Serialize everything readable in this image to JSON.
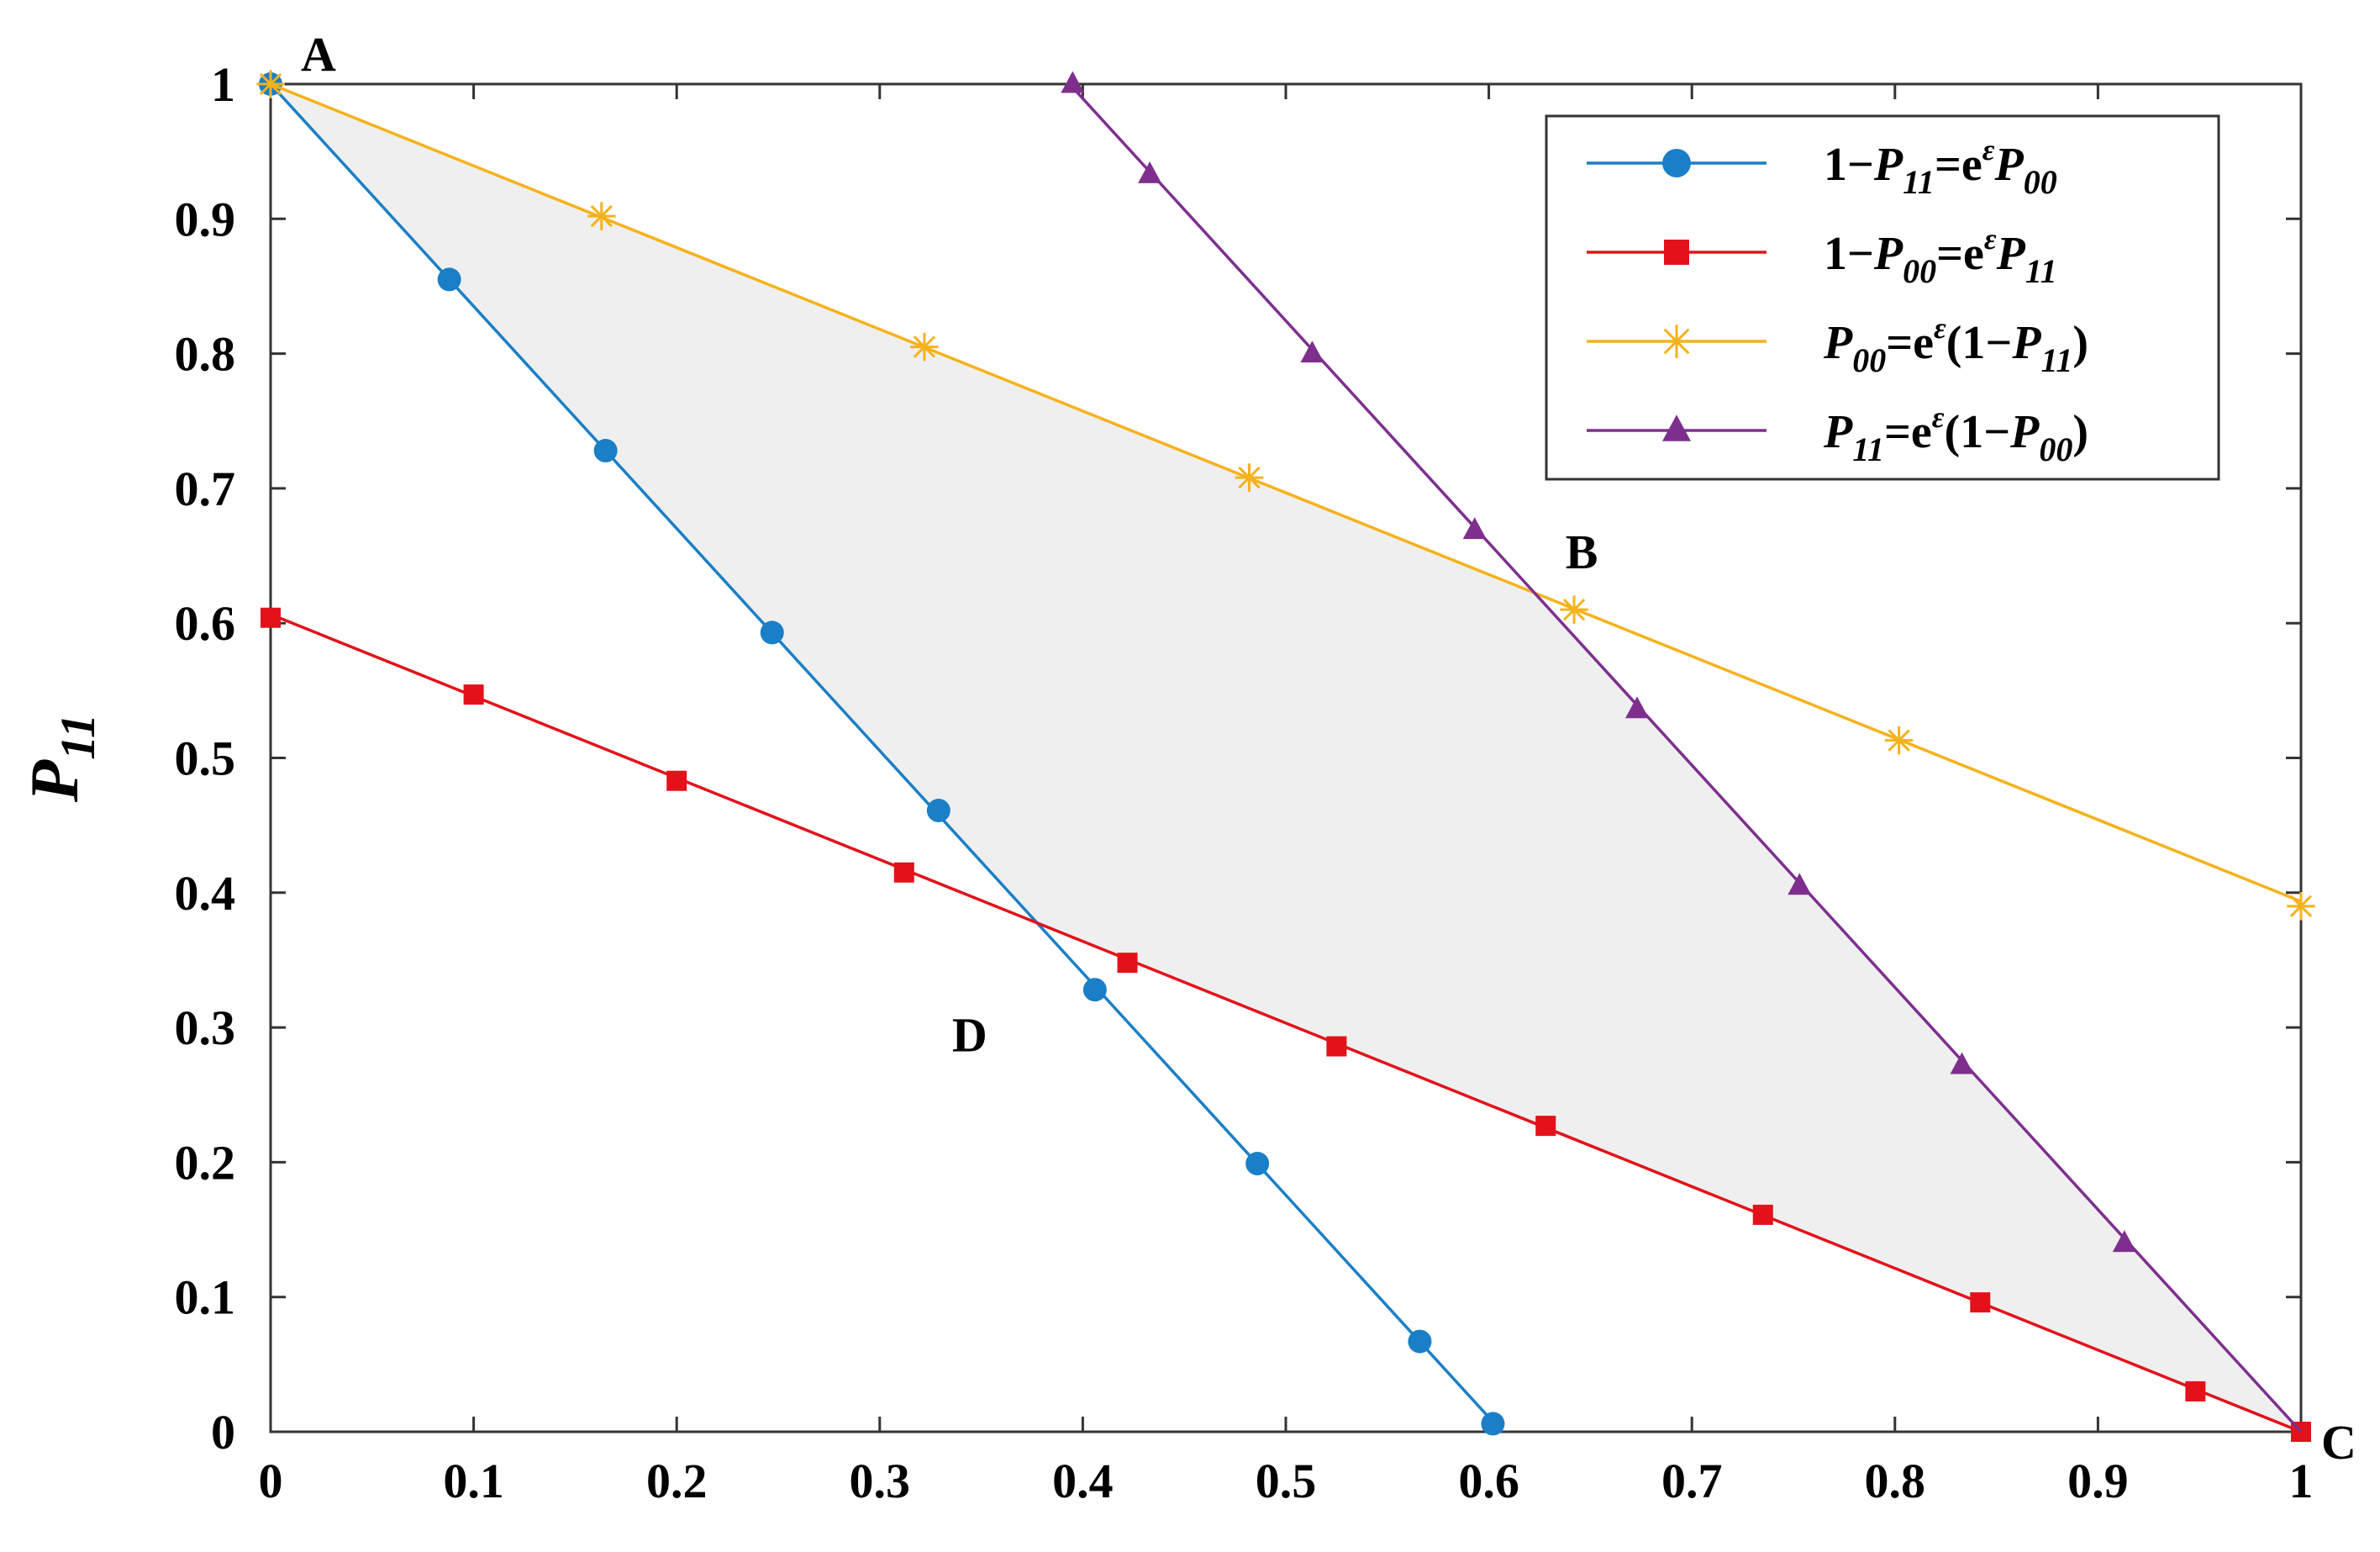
{
  "chart_data": {
    "type": "line",
    "title": "",
    "xlabel": "",
    "ylabel": "P11",
    "xlim": [
      0,
      1
    ],
    "ylim": [
      0,
      1
    ],
    "x_ticks": [
      "0",
      "0.1",
      "0.2",
      "0.3",
      "0.4",
      "0.5",
      "0.6",
      "0.7",
      "0.8",
      "0.9",
      "1"
    ],
    "y_ticks": [
      "0",
      "0.1",
      "0.2",
      "0.3",
      "0.4",
      "0.5",
      "0.6",
      "0.7",
      "0.8",
      "0.9",
      "1"
    ],
    "grid": false,
    "legend_position": "top-right",
    "shaded_region": {
      "description": "feasible region ABCD",
      "color": "#efefef",
      "vertices": [
        [
          0,
          1
        ],
        [
          0.622,
          0.622
        ],
        [
          1,
          0
        ],
        [
          0.377,
          0.377
        ]
      ]
    },
    "point_labels": [
      {
        "text": "A",
        "x": 0,
        "y": 1
      },
      {
        "text": "B",
        "x": 0.622,
        "y": 0.622
      },
      {
        "text": "C",
        "x": 1,
        "y": 0
      },
      {
        "text": "D",
        "x": 0.377,
        "y": 0.377
      }
    ],
    "series": [
      {
        "legend": {
          "prefix": "1−",
          "a": "P",
          "a_sub": "11",
          "mid": "=e",
          "sup": "ε",
          "b": "P",
          "b_sub": "00",
          "suffix": ""
        },
        "color": "#1a7fc6",
        "marker": "circle",
        "line_x": [
          0,
          0.6065
        ],
        "line_y": [
          1,
          0
        ],
        "x": [
          0,
          0.088,
          0.165,
          0.247,
          0.329,
          0.406,
          0.486,
          0.566,
          0.602
        ],
        "y": [
          1,
          0.855,
          0.728,
          0.593,
          0.461,
          0.328,
          0.199,
          0.067,
          0.006
        ]
      },
      {
        "legend": {
          "prefix": "1−",
          "a": "P",
          "a_sub": "00",
          "mid": "=e",
          "sup": "ε",
          "b": "P",
          "b_sub": "11",
          "suffix": ""
        },
        "color": "#e3121a",
        "marker": "square",
        "line_x": [
          0,
          1
        ],
        "line_y": [
          0.6065,
          0
        ],
        "x": [
          0,
          0.1,
          0.2,
          0.312,
          0.422,
          0.525,
          0.628,
          0.735,
          0.842,
          0.948,
          1
        ],
        "y": [
          0.604,
          0.547,
          0.483,
          0.415,
          0.348,
          0.286,
          0.227,
          0.161,
          0.096,
          0.03,
          0
        ]
      },
      {
        "legend": {
          "prefix": "",
          "a": "P",
          "a_sub": "00",
          "mid": "=e",
          "sup": "ε",
          "b": "(1−P",
          "b_sub": "11",
          "suffix": ")"
        },
        "color": "#f5b21c",
        "marker": "asterisk",
        "line_x": [
          0,
          1
        ],
        "line_y": [
          1,
          0.3935
        ],
        "x": [
          0,
          0.163,
          0.322,
          0.482,
          0.642,
          0.802,
          1
        ],
        "y": [
          1,
          0.902,
          0.805,
          0.708,
          0.61,
          0.513,
          0.39
        ]
      },
      {
        "legend": {
          "prefix": "",
          "a": "P",
          "a_sub": "11",
          "mid": "=e",
          "sup": "ε",
          "b": "(1−P",
          "b_sub": "00",
          "suffix": ")"
        },
        "color": "#7e2f8e",
        "marker": "triangle",
        "line_x": [
          0.3935,
          1
        ],
        "line_y": [
          1,
          0
        ],
        "x": [
          0.395,
          0.433,
          0.513,
          0.593,
          0.673,
          0.753,
          0.833,
          0.913
        ],
        "y": [
          1,
          0.933,
          0.8,
          0.669,
          0.536,
          0.405,
          0.272,
          0.14
        ]
      }
    ]
  }
}
